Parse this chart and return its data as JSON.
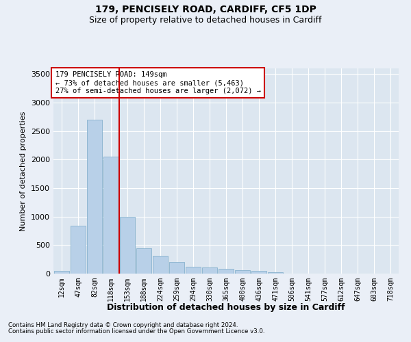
{
  "title1": "179, PENCISELY ROAD, CARDIFF, CF5 1DP",
  "title2": "Size of property relative to detached houses in Cardiff",
  "xlabel": "Distribution of detached houses by size in Cardiff",
  "ylabel": "Number of detached properties",
  "categories": [
    "12sqm",
    "47sqm",
    "82sqm",
    "118sqm",
    "153sqm",
    "188sqm",
    "224sqm",
    "259sqm",
    "294sqm",
    "330sqm",
    "365sqm",
    "400sqm",
    "436sqm",
    "471sqm",
    "506sqm",
    "541sqm",
    "577sqm",
    "612sqm",
    "647sqm",
    "683sqm",
    "718sqm"
  ],
  "bar_heights": [
    50,
    840,
    2700,
    2050,
    1000,
    440,
    310,
    200,
    120,
    110,
    85,
    55,
    50,
    30,
    0,
    0,
    0,
    0,
    0,
    0,
    0
  ],
  "bar_color": "#b8d0e8",
  "bar_edge_color": "#7aaac8",
  "property_line_x": 3.5,
  "annotation_text": "179 PENCISELY ROAD: 149sqm\n← 73% of detached houses are smaller (5,463)\n27% of semi-detached houses are larger (2,072) →",
  "annotation_box_color": "#ffffff",
  "annotation_box_edge": "#cc0000",
  "red_line_color": "#cc0000",
  "footnote1": "Contains HM Land Registry data © Crown copyright and database right 2024.",
  "footnote2": "Contains public sector information licensed under the Open Government Licence v3.0.",
  "bg_color": "#eaeff7",
  "plot_bg_color": "#dce6f0",
  "grid_color": "#ffffff",
  "ylim": [
    0,
    3600
  ],
  "yticks": [
    0,
    500,
    1000,
    1500,
    2000,
    2500,
    3000,
    3500
  ]
}
